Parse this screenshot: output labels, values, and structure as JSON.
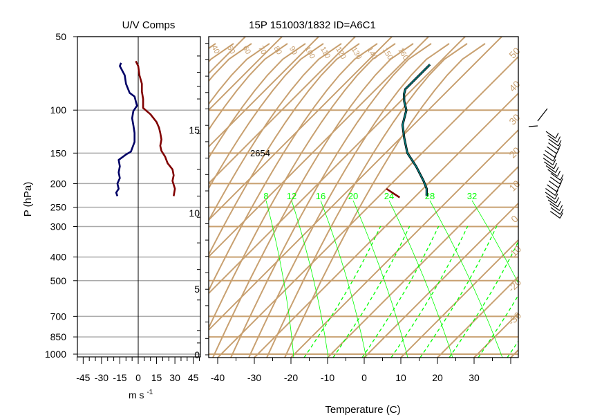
{
  "uv_panel": {
    "title": "U/V Comps",
    "ylabel": "P (hPa)",
    "xlabel": "m s",
    "xlabel_sup": "-1",
    "xticks": [
      "-45",
      "-30",
      "-15",
      "0",
      "15",
      "30",
      "45"
    ],
    "pressure_ticks": [
      "50",
      "100",
      "150",
      "200",
      "250",
      "300",
      "400",
      "500",
      "700",
      "850",
      "1000"
    ]
  },
  "skewt_panel": {
    "title": "15P 151003/1832 ID=A6C1",
    "xlabel": "Temperature (C)",
    "xticks": [
      "-40",
      "-30",
      "-20",
      "-10",
      "0",
      "10",
      "20",
      "30"
    ],
    "height_ticks": [
      "15",
      "10",
      "5",
      "0"
    ],
    "dry_adiabat_labels": [
      "40",
      "50",
      "60",
      "70",
      "80",
      "90",
      "100",
      "110",
      "120",
      "130",
      "140",
      "150",
      "160"
    ],
    "mixing_ratio_labels": [
      "8",
      "12",
      "16",
      "20",
      "24",
      "28",
      "32"
    ],
    "annotation": "2654",
    "right_edge_labels": [
      "50",
      "40",
      "30",
      "20",
      "10",
      "0",
      "-10",
      "-20",
      "-30"
    ]
  },
  "colors": {
    "grid": "#c8a070",
    "mixing_ratio": "#00ff00",
    "u_component": "#000066",
    "v_component": "#800000",
    "temperature": "#008080",
    "dewpoint": "#800000",
    "pressure_gridline": "#aaaaaa"
  },
  "chart_data": [
    {
      "type": "line",
      "title": "U/V Comps",
      "xlabel": "m s-1",
      "ylabel": "P (hPa)",
      "xlim": [
        -50,
        50
      ],
      "ylim": [
        1000,
        50
      ],
      "y_scale": "log",
      "series": [
        {
          "name": "",
          "color": "#000066",
          "x": [
            -14,
            -15,
            -11,
            -10,
            -7,
            -3,
            -1,
            -4,
            -5,
            -4,
            -3,
            -3,
            -6,
            -10,
            -16,
            -15,
            -16,
            -15,
            -17,
            -16,
            -18,
            -17
          ],
          "y": [
            64,
            66,
            72,
            78,
            85,
            88,
            96,
            101,
            108,
            115,
            124,
            135,
            148,
            152,
            160,
            170,
            180,
            190,
            200,
            210,
            218,
            225
          ]
        },
        {
          "name": "",
          "color": "#800000",
          "x": [
            -2,
            0,
            1,
            3,
            3,
            4,
            4,
            10,
            15,
            17,
            18,
            19,
            18,
            19,
            22,
            24,
            28,
            29,
            28,
            30,
            29
          ],
          "y": [
            63,
            66,
            72,
            78,
            84,
            90,
            98,
            104,
            112,
            118,
            124,
            132,
            140,
            147,
            155,
            165,
            175,
            185,
            195,
            210,
            225
          ]
        }
      ]
    },
    {
      "type": "line",
      "title": "15P 151003/1832 ID=A6C1",
      "xlabel": "Temperature (C)",
      "ylabel": "P (hPa)",
      "xlim": [
        -45,
        40
      ],
      "ylim": [
        1000,
        50
      ],
      "y_scale": "log",
      "skew": "temperature isotherms skewed 45 degrees",
      "series": [
        {
          "name": "",
          "color": "#008080",
          "x": [
            -27,
            -29,
            -32,
            -38,
            -44,
            -49,
            -53,
            -56,
            -59,
            -61,
            -62,
            -62,
            -62
          ],
          "y": [
            225,
            210,
            195,
            170,
            150,
            130,
            115,
            100,
            92,
            86,
            82,
            76,
            65
          ]
        },
        {
          "name": "",
          "color": "#800000",
          "x": [
            -40,
            -34
          ],
          "y": [
            210,
            228
          ]
        }
      ]
    }
  ]
}
